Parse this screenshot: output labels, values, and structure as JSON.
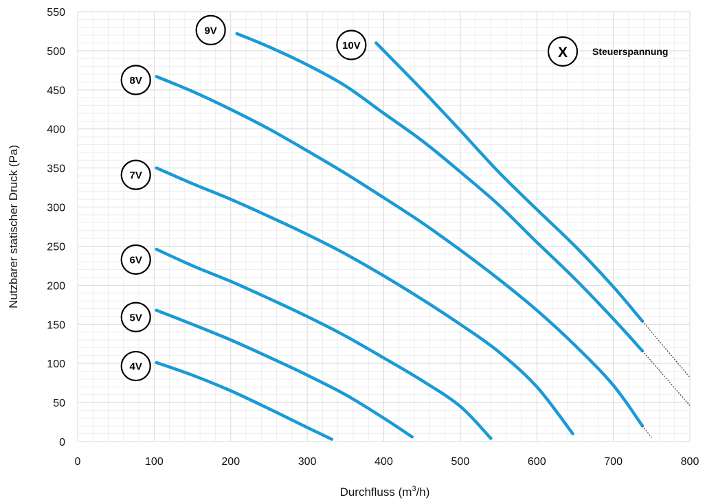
{
  "chart_data": {
    "type": "line",
    "xlabel_main": "Durchfluss (m",
    "xlabel_sup": "3",
    "xlabel_end": "/h)",
    "ylabel": "Nutzbarer statischer Druck (Pa)",
    "xlim": [
      0,
      800
    ],
    "ylim": [
      0,
      550
    ],
    "x_ticks": [
      "0",
      "100",
      "200",
      "300",
      "400",
      "500",
      "600",
      "700",
      "800"
    ],
    "y_ticks": [
      "0",
      "50",
      "100",
      "150",
      "200",
      "250",
      "300",
      "350",
      "400",
      "450",
      "500",
      "550"
    ],
    "grid": true,
    "legend": {
      "symbol": "X",
      "text": "Steuerspannung",
      "placement": "top-right"
    },
    "colors": {
      "curve": "#1a9ad6",
      "grid": "#d9d9d9",
      "extrapolation": "#444444"
    },
    "series": [
      {
        "name": "4V",
        "x": [
          103,
          150,
          200,
          250,
          300,
          332
        ],
        "y": [
          101,
          85,
          65,
          42,
          18,
          3
        ]
      },
      {
        "name": "5V",
        "x": [
          103,
          150,
          200,
          250,
          300,
          350,
          400,
          437
        ],
        "y": [
          168,
          150,
          130,
          108,
          85,
          60,
          30,
          6
        ]
      },
      {
        "name": "6V",
        "x": [
          103,
          150,
          200,
          250,
          300,
          350,
          400,
          450,
          500,
          540
        ],
        "y": [
          246,
          225,
          205,
          183,
          160,
          135,
          107,
          78,
          45,
          4
        ]
      },
      {
        "name": "7V",
        "x": [
          103,
          150,
          200,
          250,
          300,
          350,
          400,
          450,
          500,
          550,
          600,
          647
        ],
        "y": [
          350,
          330,
          310,
          288,
          265,
          240,
          212,
          182,
          150,
          115,
          70,
          10
        ]
      },
      {
        "name": "8V",
        "x": [
          103,
          150,
          200,
          250,
          300,
          350,
          400,
          450,
          500,
          550,
          600,
          650,
          700,
          738
        ],
        "y": [
          467,
          448,
          425,
          400,
          372,
          343,
          312,
          280,
          245,
          208,
          168,
          123,
          72,
          20
        ],
        "extrapolated": {
          "x": [
            738,
            750
          ],
          "y": [
            20,
            5
          ]
        }
      },
      {
        "name": "9V",
        "x": [
          208,
          250,
          300,
          350,
          400,
          450,
          500,
          550,
          600,
          650,
          700,
          738
        ],
        "y": [
          522,
          505,
          482,
          455,
          420,
          385,
          345,
          303,
          255,
          208,
          157,
          116
        ],
        "extrapolated": {
          "x": [
            738,
            800
          ],
          "y": [
            116,
            46
          ]
        }
      },
      {
        "name": "10V",
        "x": [
          390,
          450,
          500,
          550,
          600,
          650,
          700,
          738
        ],
        "y": [
          510,
          450,
          398,
          345,
          297,
          250,
          198,
          154
        ],
        "extrapolated": {
          "x": [
            738,
            800
          ],
          "y": [
            154,
            82
          ]
        }
      }
    ]
  }
}
